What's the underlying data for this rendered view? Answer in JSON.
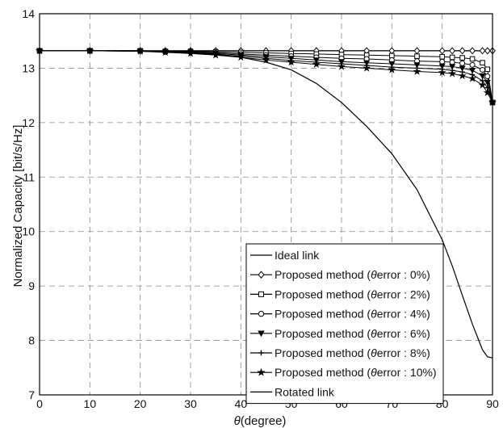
{
  "chart_data": {
    "type": "line",
    "title": "",
    "xlabel_symbol": "θ",
    "xlabel_text": "(degree)",
    "ylabel": "Normalized Capacity [bit/s/Hz]",
    "xlim": [
      0,
      90
    ],
    "ylim": [
      7,
      14
    ],
    "xticks": [
      "0",
      "10",
      "20",
      "30",
      "40",
      "50",
      "60",
      "70",
      "80",
      "90"
    ],
    "yticks": [
      "7",
      "8",
      "9",
      "10",
      "11",
      "12",
      "13",
      "14"
    ],
    "grid": true,
    "legend_position": "bottom-right",
    "x": [
      0,
      10,
      20,
      25,
      30,
      35,
      40,
      45,
      50,
      55,
      60,
      65,
      70,
      75,
      80,
      82,
      84,
      86,
      88,
      89,
      90
    ],
    "series": [
      {
        "name": "Ideal link",
        "marker": "none",
        "values": [
          13.32,
          13.32,
          13.32,
          13.32,
          13.32,
          13.32,
          13.32,
          13.32,
          13.32,
          13.32,
          13.32,
          13.32,
          13.32,
          13.32,
          13.32,
          13.32,
          13.32,
          13.32,
          13.32,
          13.32,
          13.32
        ]
      },
      {
        "name_prefix": "Proposed method (",
        "name_symbol": "θ",
        "name_suffix": "error :  0%)",
        "marker": "diamond",
        "values": [
          13.32,
          13.32,
          13.32,
          13.32,
          13.32,
          13.32,
          13.32,
          13.32,
          13.32,
          13.32,
          13.32,
          13.32,
          13.32,
          13.32,
          13.32,
          13.32,
          13.32,
          13.32,
          13.32,
          13.32,
          13.32
        ]
      },
      {
        "name_prefix": "Proposed method (",
        "name_symbol": "θ",
        "name_suffix": "error :  2%)",
        "marker": "square",
        "values": [
          13.32,
          13.32,
          13.32,
          13.31,
          13.31,
          13.3,
          13.29,
          13.28,
          13.27,
          13.26,
          13.25,
          13.24,
          13.23,
          13.22,
          13.21,
          13.2,
          13.19,
          13.17,
          13.1,
          12.98,
          12.37
        ]
      },
      {
        "name_prefix": "Proposed method (",
        "name_symbol": "θ",
        "name_suffix": "error :  4%)",
        "marker": "circle",
        "values": [
          13.32,
          13.32,
          13.32,
          13.31,
          13.3,
          13.28,
          13.26,
          13.24,
          13.22,
          13.2,
          13.18,
          13.17,
          13.15,
          13.13,
          13.12,
          13.11,
          13.09,
          13.06,
          12.97,
          12.85,
          12.37
        ]
      },
      {
        "name_prefix": "Proposed method (",
        "name_symbol": "θ",
        "name_suffix": "error :  6%)",
        "marker": "triangle-down",
        "values": [
          13.32,
          13.32,
          13.31,
          13.3,
          13.29,
          13.27,
          13.24,
          13.21,
          13.18,
          13.15,
          13.12,
          13.1,
          13.08,
          13.06,
          13.04,
          13.03,
          13.0,
          12.96,
          12.86,
          12.74,
          12.37
        ]
      },
      {
        "name_prefix": "Proposed method (",
        "name_symbol": "θ",
        "name_suffix": "error :  8%)",
        "marker": "plus",
        "values": [
          13.32,
          13.32,
          13.31,
          13.3,
          13.28,
          13.25,
          13.22,
          13.18,
          13.14,
          13.11,
          13.08,
          13.05,
          13.02,
          13.0,
          12.98,
          12.96,
          12.93,
          12.88,
          12.77,
          12.64,
          12.37
        ]
      },
      {
        "name_prefix": "Proposed method (",
        "name_symbol": "θ",
        "name_suffix": "error : 10%)",
        "marker": "star",
        "values": [
          13.32,
          13.32,
          13.31,
          13.29,
          13.27,
          13.24,
          13.2,
          13.15,
          13.11,
          13.07,
          13.03,
          13.0,
          12.97,
          12.94,
          12.92,
          12.9,
          12.86,
          12.81,
          12.69,
          12.55,
          12.37
        ]
      },
      {
        "name": "Rotated link",
        "marker": "none",
        "values": [
          13.32,
          13.32,
          13.32,
          13.31,
          13.29,
          13.26,
          13.2,
          13.11,
          12.97,
          12.72,
          12.37,
          11.93,
          11.43,
          10.77,
          9.85,
          9.37,
          8.83,
          8.3,
          7.83,
          7.7,
          7.68
        ]
      }
    ]
  }
}
